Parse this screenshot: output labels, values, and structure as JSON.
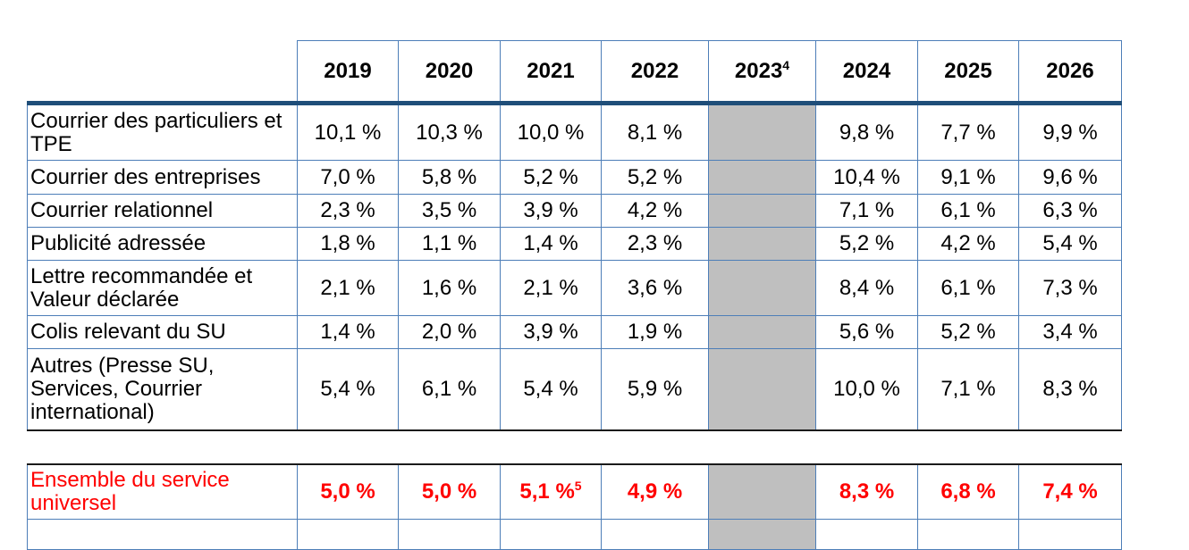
{
  "document": {
    "language": "fr",
    "description": "Table of annual percentage evolutions by postal universal service category"
  },
  "colors": {
    "cell_border_blue": "#4D7EB8",
    "header_rule_navy": "#1F4E79",
    "section_rule_dark": "#1A1A1A",
    "shaded_column_gray": "#BFBFBF",
    "summary_red": "#FF0000",
    "body_text": "#000000",
    "page_background": "#FFFFFF"
  },
  "header": {
    "columns": [
      {
        "label": "2019"
      },
      {
        "label": "2020"
      },
      {
        "label": "2021"
      },
      {
        "label": "2022"
      },
      {
        "label": "2023",
        "footnote": "4"
      },
      {
        "label": "2024"
      },
      {
        "label": "2025"
      },
      {
        "label": "2026"
      }
    ]
  },
  "shaded_column_year": "2023",
  "rows": [
    {
      "label": "Courrier des particuliers et TPE",
      "values": [
        "10,1 %",
        "10,3 %",
        "10,0 %",
        "8,1 %",
        "",
        "9,8 %",
        "7,7 %",
        "9,9 %"
      ]
    },
    {
      "label": "Courrier des entreprises",
      "values": [
        "7,0 %",
        "5,8 %",
        "5,2 %",
        "5,2 %",
        "",
        "10,4 %",
        "9,1 %",
        "9,6 %"
      ]
    },
    {
      "label": "Courrier relationnel",
      "values": [
        "2,3 %",
        "3,5 %",
        "3,9 %",
        "4,2 %",
        "",
        "7,1 %",
        "6,1 %",
        "6,3 %"
      ]
    },
    {
      "label": "Publicité adressée",
      "values": [
        "1,8 %",
        "1,1 %",
        "1,4 %",
        "2,3 %",
        "",
        "5,2 %",
        "4,2 %",
        "5,4 %"
      ]
    },
    {
      "label": "Lettre recommandée et Valeur déclarée",
      "values": [
        "2,1 %",
        "1,6 %",
        "2,1 %",
        "3,6 %",
        "",
        "8,4 %",
        "6,1 %",
        "7,3 %"
      ]
    },
    {
      "label": "Colis relevant du SU",
      "values": [
        "1,4 %",
        "2,0 %",
        "3,9 %",
        "1,9 %",
        "",
        "5,6 %",
        "5,2 %",
        "3,4 %"
      ]
    },
    {
      "label": "Autres (Presse SU, Services, Courrier international)",
      "values": [
        "5,4 %",
        "6,1 %",
        "5,4 %",
        "5,9 %",
        "",
        "10,0 %",
        "7,1 %",
        "8,3 %"
      ]
    }
  ],
  "summary": {
    "label": "Ensemble du service universel",
    "values": [
      "5,0 %",
      "5,0 %",
      {
        "label": "5,1 %",
        "footnote": "5"
      },
      "4,9 %",
      "",
      "8,3 %",
      "6,8 %",
      "7,4 %"
    ]
  }
}
